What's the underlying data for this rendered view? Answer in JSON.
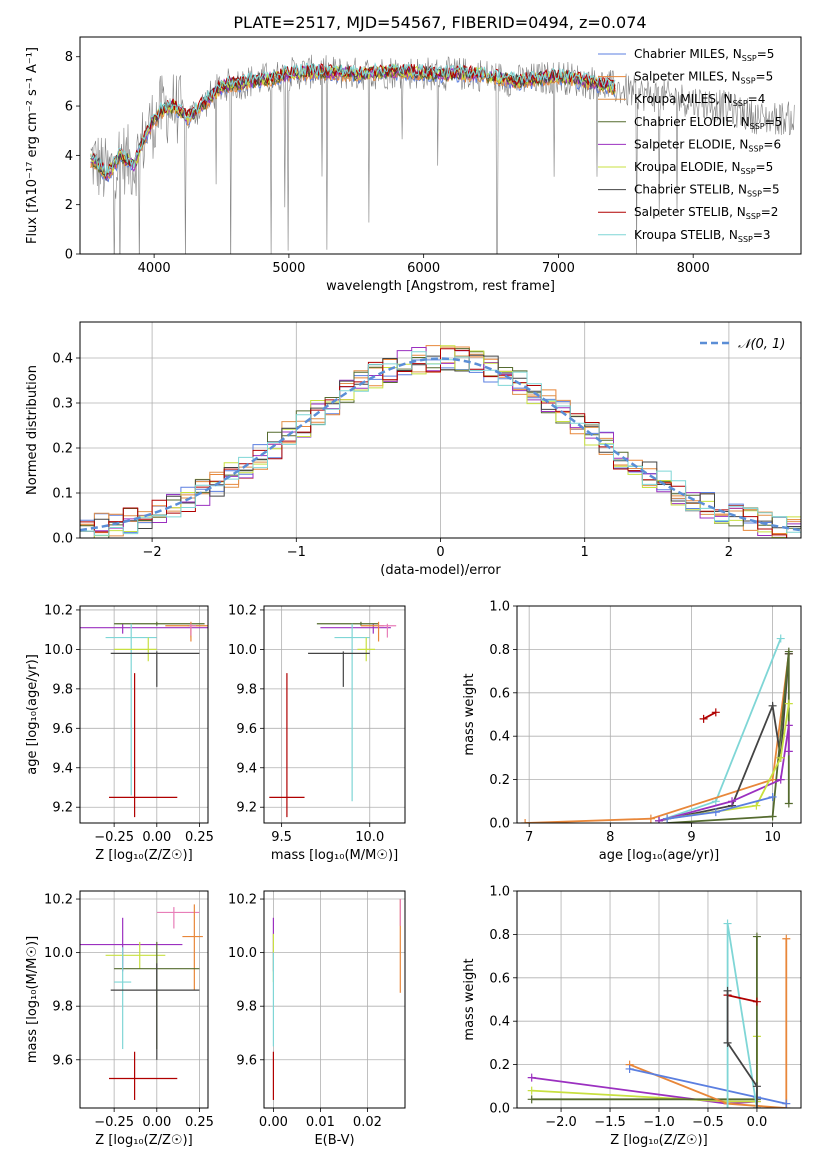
{
  "title": "PLATE=2517, MJD=54567, FIBERID=0494, z=0.074",
  "colors": {
    "chabrier_miles": "#5b7fe0",
    "salpeter_miles": "#e8873a",
    "kroupa_miles": "#e0904a",
    "chabrier_elodie": "#556b2f",
    "salpeter_elodie": "#9b30c0",
    "kroupa_elodie": "#c8e040",
    "chabrier_stelib": "#444444",
    "salpeter_stelib": "#b00000",
    "kroupa_stelib": "#7fd6d6",
    "data": "#808080",
    "pink": "#e87eb8",
    "normal": "#5b8ed6"
  },
  "chart_data": [
    {
      "type": "line",
      "id": "spectrum",
      "xlabel": "wavelength [Angstrom, rest frame]",
      "ylabel": "Flux [fλ10⁻¹⁷ erg cm⁻² s⁻¹ A⁻¹]",
      "xlim": [
        3450,
        8800
      ],
      "ylim": [
        0,
        8.8
      ],
      "xticks": [
        4000,
        5000,
        6000,
        7000,
        8000
      ],
      "yticks": [
        0,
        2,
        4,
        6,
        8
      ],
      "legend_position": "right",
      "legend": [
        {
          "label": "Chabrier MILES, N",
          "sub": "SSP",
          "suffix": "=5",
          "color": "chabrier_miles"
        },
        {
          "label": "Salpeter MILES, N",
          "sub": "SSP",
          "suffix": "=5",
          "color": "salpeter_miles"
        },
        {
          "label": "Kroupa MILES, N",
          "sub": "SSP",
          "suffix": "=4",
          "color": "kroupa_miles"
        },
        {
          "label": "Chabrier ELODIE, N",
          "sub": "SSP",
          "suffix": "=5",
          "color": "chabrier_elodie"
        },
        {
          "label": "Salpeter ELODIE, N",
          "sub": "SSP",
          "suffix": "=6",
          "color": "salpeter_elodie"
        },
        {
          "label": "Kroupa ELODIE, N",
          "sub": "SSP",
          "suffix": "=5",
          "color": "kroupa_elodie"
        },
        {
          "label": "Chabrier STELIB, N",
          "sub": "SSP",
          "suffix": "=5",
          "color": "chabrier_stelib"
        },
        {
          "label": "Salpeter STELIB, N",
          "sub": "SSP",
          "suffix": "=2",
          "color": "salpeter_stelib"
        },
        {
          "label": "Kroupa STELIB, N",
          "sub": "SSP",
          "suffix": "=3",
          "color": "kroupa_stelib"
        }
      ],
      "continuum_x": [
        3550,
        3650,
        3750,
        3850,
        3950,
        4050,
        4150,
        4250,
        4350,
        4500,
        4700,
        4850,
        5000,
        5200,
        5500,
        5800,
        6100,
        6400,
        6700,
        7000,
        7300,
        7600,
        7900,
        8200,
        8500
      ],
      "continuum_y": [
        3.8,
        3.2,
        4.0,
        3.6,
        5.0,
        5.8,
        6.0,
        5.5,
        6.0,
        6.8,
        7.0,
        7.1,
        7.3,
        7.4,
        7.3,
        7.4,
        7.3,
        7.3,
        7.0,
        7.2,
        6.9,
        6.5,
        6.3,
        6.0,
        5.5
      ]
    },
    {
      "type": "line",
      "id": "residual-histogram",
      "xlabel": "(data-model)/error",
      "ylabel": "Normed distribution",
      "xlim": [
        -2.5,
        2.5
      ],
      "ylim": [
        0,
        0.48
      ],
      "xticks": [
        -2,
        -1,
        0,
        1,
        2
      ],
      "yticks": [
        0.0,
        0.1,
        0.2,
        0.3,
        0.4
      ],
      "grid": true,
      "legend": "𝒩(0, 1)",
      "legend_position": "top-right",
      "bin_width": 0.1,
      "series_colors": [
        "chabrier_miles",
        "salpeter_miles",
        "kroupa_miles",
        "chabrier_elodie",
        "salpeter_elodie",
        "kroupa_elodie",
        "chabrier_stelib",
        "salpeter_stelib",
        "kroupa_stelib"
      ]
    },
    {
      "type": "scatter",
      "id": "age-vs-Z",
      "xlabel": "Z [log₁₀(Z/Z☉)]",
      "ylabel": "age  [log₁₀(age/yr)]",
      "xlim": [
        -0.45,
        0.3
      ],
      "ylim": [
        9.12,
        10.22
      ],
      "xticks": [
        -0.25,
        0.0,
        0.25
      ],
      "yticks": [
        9.2,
        9.4,
        9.6,
        9.8,
        10.0,
        10.2
      ],
      "grid": true,
      "points": [
        {
          "x": -0.2,
          "y": 10.11,
          "xerr": [
            0.3,
            0.5
          ],
          "yerr": [
            0.03,
            0.02
          ],
          "color": "salpeter_elodie"
        },
        {
          "x": 0.0,
          "y": 10.13,
          "xerr": [
            0.25,
            0.28
          ],
          "yerr": [
            0.01,
            0.01
          ],
          "color": "chabrier_elodie"
        },
        {
          "x": 0.2,
          "y": 10.12,
          "xerr": [
            0.15,
            0.1
          ],
          "yerr": [
            0.08,
            0.02
          ],
          "color": "salpeter_miles"
        },
        {
          "x": 0.2,
          "y": 10.12,
          "xerr": [
            0.02,
            0.06
          ],
          "yerr": [
            0.06,
            0.01
          ],
          "color": "kroupa_miles"
        },
        {
          "x": -0.15,
          "y": 10.06,
          "xerr": [
            0.15,
            0.15
          ],
          "yerr": [
            0.8,
            0.07
          ],
          "color": "kroupa_stelib"
        },
        {
          "x": -0.05,
          "y": 10.0,
          "xerr": [
            0.2,
            0.05
          ],
          "yerr": [
            0.06,
            0.06
          ],
          "color": "kroupa_elodie"
        },
        {
          "x": 0.0,
          "y": 9.98,
          "xerr": [
            0.27,
            0.25
          ],
          "yerr": [
            0.17,
            0.01
          ],
          "color": "chabrier_stelib"
        },
        {
          "x": -0.13,
          "y": 9.25,
          "xerr": [
            0.15,
            0.25
          ],
          "yerr": [
            0.1,
            0.63
          ],
          "color": "salpeter_stelib"
        },
        {
          "x": 0.2,
          "y": 10.12,
          "xerr": [
            0.01,
            0.03
          ],
          "yerr": [
            0.05,
            0.01
          ],
          "color": "pink"
        }
      ]
    },
    {
      "type": "scatter",
      "id": "age-vs-mass",
      "xlabel": "mass [log₁₀(M/M☉)]",
      "ylabel": "",
      "xlim": [
        9.4,
        10.2
      ],
      "ylim": [
        9.12,
        10.22
      ],
      "xticks": [
        9.5,
        10.0
      ],
      "yticks": [
        9.2,
        9.4,
        9.6,
        9.8,
        10.0,
        10.2
      ],
      "grid": true,
      "points": [
        {
          "x": 10.02,
          "y": 10.11,
          "xerr": [
            0.3,
            0.1
          ],
          "yerr": [
            0.03,
            0.02
          ],
          "color": "salpeter_elodie"
        },
        {
          "x": 9.95,
          "y": 10.13,
          "xerr": [
            0.25,
            0.1
          ],
          "yerr": [
            0.01,
            0.01
          ],
          "color": "chabrier_elodie"
        },
        {
          "x": 10.05,
          "y": 10.12,
          "xerr": [
            0.1,
            0.03
          ],
          "yerr": [
            0.08,
            0.02
          ],
          "color": "salpeter_miles"
        },
        {
          "x": 10.1,
          "y": 10.12,
          "xerr": [
            0.05,
            0.05
          ],
          "yerr": [
            0.06,
            0.01
          ],
          "color": "pink"
        },
        {
          "x": 9.9,
          "y": 10.06,
          "xerr": [
            0.1,
            0.1
          ],
          "yerr": [
            0.83,
            0.07
          ],
          "color": "kroupa_stelib"
        },
        {
          "x": 9.98,
          "y": 10.0,
          "xerr": [
            0.05,
            0.05
          ],
          "yerr": [
            0.06,
            0.06
          ],
          "color": "kroupa_elodie"
        },
        {
          "x": 9.85,
          "y": 9.98,
          "xerr": [
            0.2,
            0.15
          ],
          "yerr": [
            0.17,
            0.01
          ],
          "color": "chabrier_stelib"
        },
        {
          "x": 9.53,
          "y": 9.25,
          "xerr": [
            0.1,
            0.1
          ],
          "yerr": [
            0.1,
            0.63
          ],
          "color": "salpeter_stelib"
        }
      ]
    },
    {
      "type": "line",
      "id": "mass-weight-vs-age",
      "xlabel": "age  [log₁₀(age/yr)]",
      "ylabel": "mass weight",
      "xlim": [
        6.85,
        10.35
      ],
      "ylim": [
        0,
        1.0
      ],
      "xticks": [
        7,
        8,
        9,
        10
      ],
      "yticks": [
        0.0,
        0.2,
        0.4,
        0.6,
        0.8,
        1.0
      ],
      "grid": true,
      "series": [
        {
          "color": "kroupa_stelib",
          "x": [
            8.6,
            9.3,
            10.1
          ],
          "y": [
            0.01,
            0.1,
            0.85
          ]
        },
        {
          "color": "salpeter_stelib",
          "x": [
            9.15,
            9.3
          ],
          "y": [
            0.48,
            0.51
          ]
        },
        {
          "color": "salpeter_miles",
          "x": [
            6.95,
            8.5,
            10.0,
            10.2
          ],
          "y": [
            0.0,
            0.02,
            0.2,
            0.78
          ]
        },
        {
          "color": "chabrier_stelib",
          "x": [
            8.6,
            9.5,
            10.0,
            10.1,
            10.2
          ],
          "y": [
            0.01,
            0.08,
            0.54,
            0.3,
            0.78
          ]
        },
        {
          "color": "chabrier_elodie",
          "x": [
            8.7,
            10.0,
            10.2,
            10.2
          ],
          "y": [
            0.0,
            0.03,
            0.79,
            0.09
          ]
        },
        {
          "color": "salpeter_elodie",
          "x": [
            8.6,
            9.5,
            10.1,
            10.2,
            10.2
          ],
          "y": [
            0.01,
            0.1,
            0.2,
            0.45,
            0.33
          ]
        },
        {
          "color": "kroupa_elodie",
          "x": [
            8.7,
            9.8,
            10.1,
            10.2
          ],
          "y": [
            0.02,
            0.08,
            0.3,
            0.55
          ]
        },
        {
          "color": "chabrier_miles",
          "x": [
            8.7,
            9.3,
            10.0
          ],
          "y": [
            0.02,
            0.05,
            0.12
          ]
        }
      ]
    },
    {
      "type": "scatter",
      "id": "mass-vs-Z",
      "xlabel": "Z [log₁₀(Z/Z☉)]",
      "ylabel": "mass [log₁₀(M/M☉)]",
      "xlim": [
        -0.45,
        0.3
      ],
      "ylim": [
        9.42,
        10.23
      ],
      "xticks": [
        -0.25,
        0.0,
        0.25
      ],
      "yticks": [
        9.6,
        9.8,
        10.0,
        10.2
      ],
      "grid": true,
      "points": [
        {
          "x": -0.2,
          "y": 10.03,
          "xerr": [
            0.25,
            0.35
          ],
          "yerr": [
            0.1,
            0.1
          ],
          "color": "salpeter_elodie"
        },
        {
          "x": 0.1,
          "y": 10.15,
          "xerr": [
            0.1,
            0.15
          ],
          "yerr": [
            0.06,
            0.02
          ],
          "color": "pink"
        },
        {
          "x": 0.22,
          "y": 10.06,
          "xerr": [
            0.07,
            0.05
          ],
          "yerr": [
            0.2,
            0.12
          ],
          "color": "salpeter_miles"
        },
        {
          "x": -0.1,
          "y": 9.99,
          "xerr": [
            0.2,
            0.15
          ],
          "yerr": [
            0.05,
            0.05
          ],
          "color": "kroupa_elodie"
        },
        {
          "x": 0.0,
          "y": 9.94,
          "xerr": [
            0.25,
            0.25
          ],
          "yerr": [
            0.3,
            0.1
          ],
          "color": "chabrier_elodie"
        },
        {
          "x": -0.2,
          "y": 9.89,
          "xerr": [
            0.05,
            0.05
          ],
          "yerr": [
            0.25,
            0.13
          ],
          "color": "kroupa_stelib"
        },
        {
          "x": 0.0,
          "y": 9.86,
          "xerr": [
            0.27,
            0.25
          ],
          "yerr": [
            0.26,
            0.1
          ],
          "color": "chabrier_stelib"
        },
        {
          "x": -0.13,
          "y": 9.53,
          "xerr": [
            0.15,
            0.25
          ],
          "yerr": [
            0.08,
            0.1
          ],
          "color": "salpeter_stelib"
        }
      ]
    },
    {
      "type": "scatter",
      "id": "mass-vs-EBV",
      "xlabel": "E(B-V)",
      "ylabel": "",
      "xlim": [
        -0.002,
        0.028
      ],
      "ylim": [
        9.42,
        10.23
      ],
      "xticks": [
        0.0,
        0.01,
        0.02
      ],
      "yticks": [
        9.6,
        9.8,
        10.0,
        10.2
      ],
      "grid": true,
      "points": [
        {
          "x": 0.0,
          "y": 10.03,
          "xerr": [
            0.0,
            0.0
          ],
          "yerr": [
            0.1,
            0.1
          ],
          "color": "salpeter_elodie"
        },
        {
          "x": 0.0,
          "y": 9.99,
          "xerr": [
            0.0,
            0.0
          ],
          "yerr": [
            0.1,
            0.08
          ],
          "color": "kroupa_elodie"
        },
        {
          "x": 0.0,
          "y": 9.9,
          "xerr": [
            0.0,
            0.0
          ],
          "yerr": [
            0.25,
            0.1
          ],
          "color": "kroupa_stelib"
        },
        {
          "x": 0.0,
          "y": 9.55,
          "xerr": [
            0.0,
            0.0
          ],
          "yerr": [
            0.1,
            0.08
          ],
          "color": "salpeter_stelib"
        },
        {
          "x": 0.027,
          "y": 10.05,
          "xerr": [
            0.0,
            0.0
          ],
          "yerr": [
            0.2,
            0.15
          ],
          "color": "salpeter_miles"
        },
        {
          "x": 0.027,
          "y": 10.15,
          "xerr": [
            0.0,
            0.0
          ],
          "yerr": [
            0.05,
            0.05
          ],
          "color": "pink"
        }
      ]
    },
    {
      "type": "line",
      "id": "mass-weight-vs-Z",
      "xlabel": "Z [log₁₀(Z/Z☉)]",
      "ylabel": "mass weight",
      "xlim": [
        -2.45,
        0.45
      ],
      "ylim": [
        0,
        1.0
      ],
      "xticks": [
        -2.0,
        -1.5,
        -1.0,
        -0.5,
        0.0
      ],
      "yticks": [
        0.0,
        0.2,
        0.4,
        0.6,
        0.8,
        1.0
      ],
      "grid": true,
      "series": [
        {
          "color": "salpeter_elodie",
          "x": [
            -2.3,
            -0.3,
            0.0
          ],
          "y": [
            0.14,
            0.02,
            0.03
          ]
        },
        {
          "color": "kroupa_elodie",
          "x": [
            -2.3,
            -0.3,
            0.0,
            0.0
          ],
          "y": [
            0.08,
            0.03,
            0.03,
            0.33
          ]
        },
        {
          "color": "chabrier_elodie",
          "x": [
            -2.3,
            -0.3,
            0.0,
            0.0
          ],
          "y": [
            0.04,
            0.04,
            0.04,
            0.79
          ]
        },
        {
          "color": "salpeter_miles",
          "x": [
            -1.3,
            -0.3,
            0.3,
            0.3
          ],
          "y": [
            0.2,
            0.02,
            0.0,
            0.78
          ]
        },
        {
          "color": "chabrier_miles",
          "x": [
            -1.3,
            0.0,
            0.3
          ],
          "y": [
            0.18,
            0.05,
            0.02
          ]
        },
        {
          "color": "kroupa_stelib",
          "x": [
            -0.3,
            -0.3,
            0.0
          ],
          "y": [
            0.0,
            0.85,
            0.0
          ]
        },
        {
          "color": "salpeter_stelib",
          "x": [
            -0.3,
            0.0
          ],
          "y": [
            0.52,
            0.49
          ]
        },
        {
          "color": "chabrier_stelib",
          "x": [
            -0.3,
            -0.3,
            0.0,
            0.0
          ],
          "y": [
            0.54,
            0.3,
            0.1,
            0.0
          ]
        }
      ]
    }
  ]
}
